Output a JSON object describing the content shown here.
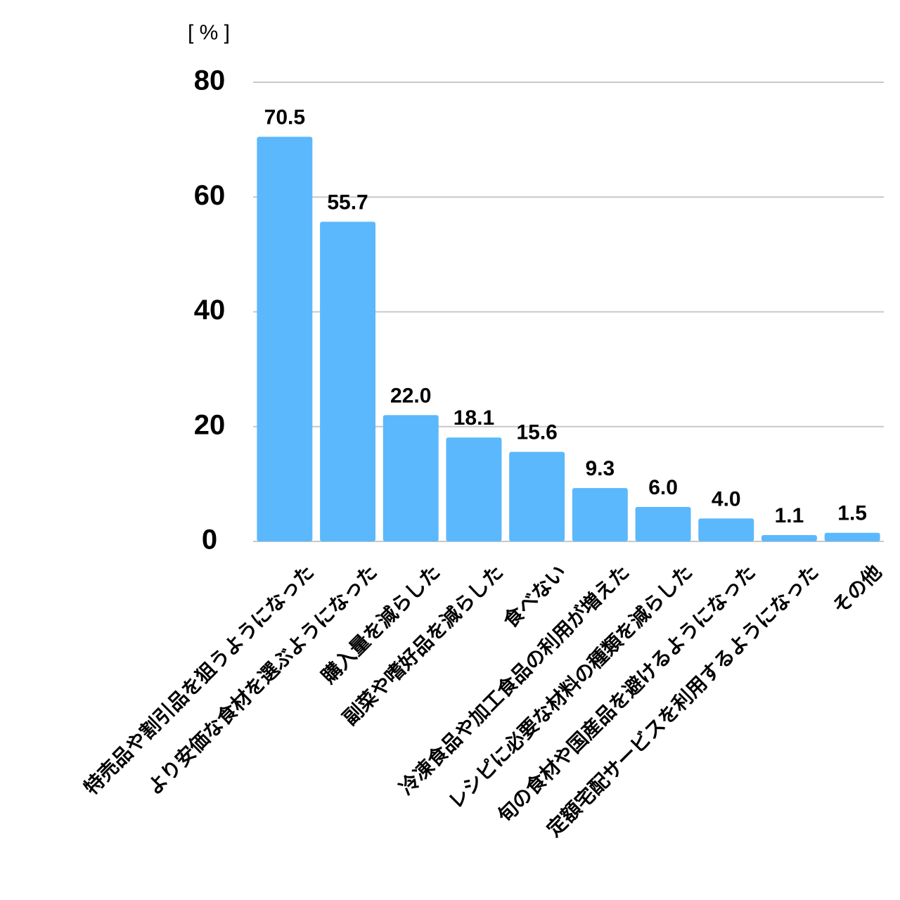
{
  "chart_data": {
    "type": "bar",
    "y_label": "[ % ]",
    "categories": [
      "特売品や割引品を狙うようになった",
      "より安価な食材を選ぶようになった",
      "購入量を減らした",
      "副菜や嗜好品を減らした",
      "食べない",
      "冷凍食品や加工食品の利用が増えた",
      "レシピに必要な材料の種類を減らした",
      "旬の食材や国産品を避けるようになった",
      "定額宅配サービスを利用するようになった",
      "その他"
    ],
    "values": [
      70.5,
      55.7,
      22.0,
      18.1,
      15.6,
      9.3,
      6.0,
      4.0,
      1.1,
      1.5
    ],
    "value_labels": [
      "70.5",
      "55.7",
      "22.0",
      "18.1",
      "15.6",
      "9.3",
      "6.0",
      "4.0",
      "1.1",
      "1.5"
    ],
    "color": "#5bb8fc",
    "ylim": [
      0,
      80
    ],
    "yticks": [
      0,
      20,
      40,
      60,
      80
    ],
    "grid": true
  }
}
